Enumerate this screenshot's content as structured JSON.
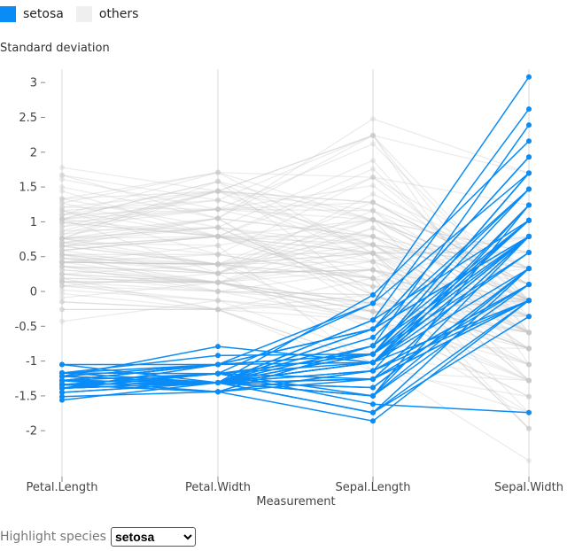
{
  "legend": [
    {
      "label": "setosa",
      "color": "#0a8cf7"
    },
    {
      "label": "others",
      "color": "#efefef"
    }
  ],
  "control": {
    "label": "Highlight species",
    "selected": "setosa"
  },
  "chart_data": {
    "type": "parallel-coordinates",
    "ylabel": "Standard deviation",
    "xlabel": "Measurement",
    "dimensions": [
      "Petal.Length",
      "Petal.Width",
      "Sepal.Length",
      "Sepal.Width"
    ],
    "yticks": [
      3,
      2.5,
      2,
      1.5,
      1,
      0.5,
      0,
      -0.5,
      -1,
      -1.5,
      -2
    ],
    "ytick_labels": [
      "3",
      "2.5",
      "2",
      "1.5",
      "1",
      "0.5",
      "0",
      "-0.5",
      "-1",
      "-1.5",
      "-2"
    ],
    "ylim": [
      -2.55,
      3.2
    ],
    "grid": "vertical axes",
    "highlight_color": "#0a8cf7",
    "other_color": "#c8c8c8",
    "series": [
      {
        "name": "setosa",
        "rows": [
          [
            -1.34,
            -1.31,
            -0.9,
            1.02
          ],
          [
            -1.34,
            -1.31,
            -1.14,
            -0.13
          ],
          [
            -1.39,
            -1.31,
            -1.38,
            0.33
          ],
          [
            -1.28,
            -1.31,
            -1.5,
            0.1
          ],
          [
            -1.34,
            -1.31,
            -1.02,
            1.24
          ],
          [
            -1.17,
            -1.05,
            -0.54,
            1.93
          ],
          [
            -1.34,
            -1.18,
            -1.5,
            0.79
          ],
          [
            -1.28,
            -1.31,
            -1.02,
            0.79
          ],
          [
            -1.34,
            -1.31,
            -1.74,
            -0.36
          ],
          [
            -1.28,
            -1.44,
            -1.14,
            0.1
          ],
          [
            -1.28,
            -1.31,
            -0.54,
            1.47
          ],
          [
            -1.22,
            -1.31,
            -1.26,
            0.79
          ],
          [
            -1.34,
            -1.44,
            -1.26,
            -0.13
          ],
          [
            -1.51,
            -1.44,
            -1.86,
            -0.13
          ],
          [
            -1.45,
            -1.31,
            -0.05,
            2.16
          ],
          [
            -1.28,
            -1.05,
            -0.17,
            3.08
          ],
          [
            -1.39,
            -1.05,
            -0.54,
            1.93
          ],
          [
            -1.34,
            -1.18,
            -0.9,
            1.02
          ],
          [
            -1.17,
            -1.18,
            -0.17,
            1.7
          ],
          [
            -1.28,
            -1.18,
            -0.9,
            1.7
          ],
          [
            -1.17,
            -1.31,
            -0.54,
            0.79
          ],
          [
            -1.28,
            -1.05,
            -0.9,
            1.47
          ],
          [
            -1.56,
            -1.31,
            -1.5,
            1.24
          ],
          [
            -1.17,
            -0.92,
            -0.9,
            0.56
          ],
          [
            -1.05,
            -1.31,
            -1.26,
            0.79
          ],
          [
            -1.22,
            -1.31,
            -1.02,
            -0.13
          ],
          [
            -1.22,
            -1.05,
            -1.02,
            0.79
          ],
          [
            -1.28,
            -1.31,
            -0.78,
            1.02
          ],
          [
            -1.34,
            -1.31,
            -0.78,
            0.79
          ],
          [
            -1.22,
            -1.31,
            -1.38,
            0.33
          ],
          [
            -1.22,
            -1.31,
            -1.26,
            0.1
          ],
          [
            -1.28,
            -1.05,
            -0.54,
            0.79
          ],
          [
            -1.28,
            -1.44,
            -0.78,
            2.39
          ],
          [
            -1.34,
            -1.31,
            -0.41,
            2.62
          ],
          [
            -1.28,
            -1.31,
            -1.14,
            0.1
          ],
          [
            -1.45,
            -1.31,
            -1.02,
            0.33
          ],
          [
            -1.39,
            -1.31,
            -0.41,
            1.02
          ],
          [
            -1.34,
            -1.44,
            -1.14,
            1.24
          ],
          [
            -1.39,
            -1.31,
            -1.74,
            -0.13
          ],
          [
            -1.28,
            -1.31,
            -0.9,
            0.79
          ],
          [
            -1.39,
            -1.18,
            -1.02,
            1.02
          ],
          [
            -1.39,
            -1.18,
            -1.62,
            -1.74
          ],
          [
            -1.39,
            -1.31,
            -1.74,
            0.33
          ],
          [
            -1.22,
            -0.79,
            -1.02,
            1.02
          ],
          [
            -1.05,
            -1.05,
            -0.9,
            1.7
          ],
          [
            -1.34,
            -1.18,
            -1.26,
            -0.13
          ],
          [
            -1.22,
            -1.31,
            -0.9,
            1.7
          ],
          [
            -1.34,
            -1.31,
            -1.5,
            0.33
          ],
          [
            -1.28,
            -1.31,
            -0.66,
            1.47
          ],
          [
            -1.34,
            -1.31,
            -1.02,
            0.56
          ]
        ]
      },
      {
        "name": "others",
        "rows": [
          [
            0.53,
            0.26,
            1.4,
            0.33
          ],
          [
            0.42,
            0.39,
            0.67,
            0.33
          ],
          [
            0.65,
            0.39,
            1.28,
            0.1
          ],
          [
            0.14,
            0.13,
            -0.41,
            -1.74
          ],
          [
            0.48,
            0.39,
            0.79,
            -0.59
          ],
          [
            0.42,
            0.13,
            -0.17,
            -0.59
          ],
          [
            0.53,
            0.53,
            0.55,
            0.56
          ],
          [
            -0.26,
            -0.26,
            -1.14,
            -1.51
          ],
          [
            0.48,
            0.13,
            0.91,
            -0.36
          ],
          [
            0.08,
            0.26,
            -0.78,
            -0.82
          ],
          [
            -0.15,
            -0.26,
            -1.02,
            -2.43
          ],
          [
            0.25,
            0.39,
            0.07,
            -0.13
          ],
          [
            0.14,
            -0.26,
            0.19,
            -1.97
          ],
          [
            0.53,
            0.26,
            0.31,
            -0.36
          ],
          [
            -0.09,
            0.13,
            -0.29,
            -0.36
          ],
          [
            0.36,
            0.26,
            1.03,
            0.1
          ],
          [
            0.42,
            0.39,
            -0.29,
            -0.13
          ],
          [
            0.19,
            -0.26,
            -0.05,
            -0.82
          ],
          [
            0.42,
            0.39,
            0.43,
            -1.97
          ],
          [
            0.08,
            -0.13,
            -0.29,
            -1.28
          ],
          [
            0.59,
            0.79,
            0.07,
            0.33
          ],
          [
            0.14,
            0.13,
            0.31,
            -0.59
          ],
          [
            0.65,
            0.39,
            0.55,
            -1.28
          ],
          [
            0.53,
            0.0,
            0.31,
            -0.59
          ],
          [
            0.31,
            0.13,
            0.67,
            -0.36
          ],
          [
            0.36,
            0.26,
            0.91,
            -0.13
          ],
          [
            0.59,
            0.26,
            1.16,
            -0.59
          ],
          [
            0.7,
            0.66,
            1.03,
            -0.13
          ],
          [
            0.42,
            0.39,
            0.19,
            -0.36
          ],
          [
            -0.15,
            -0.26,
            -0.17,
            -1.05
          ],
          [
            0.02,
            -0.13,
            -0.41,
            -1.51
          ],
          [
            -0.03,
            -0.26,
            -0.41,
            -1.51
          ],
          [
            0.08,
            0.0,
            -0.05,
            -0.82
          ],
          [
            0.76,
            0.53,
            0.19,
            -0.82
          ],
          [
            0.42,
            0.39,
            -0.54,
            -0.13
          ],
          [
            0.42,
            0.53,
            0.19,
            0.79
          ],
          [
            0.53,
            0.39,
            1.03,
            0.1
          ],
          [
            0.36,
            0.13,
            0.55,
            -1.74
          ],
          [
            0.19,
            0.13,
            -0.29,
            -0.13
          ],
          [
            0.14,
            0.13,
            -0.41,
            -1.28
          ],
          [
            0.36,
            0.0,
            -0.41,
            -1.05
          ],
          [
            0.48,
            0.26,
            0.31,
            -0.13
          ],
          [
            0.14,
            0.0,
            -0.05,
            -1.05
          ],
          [
            -0.26,
            -0.26,
            -1.02,
            -1.74
          ],
          [
            0.25,
            0.13,
            -0.29,
            -0.82
          ],
          [
            0.25,
            0.0,
            -0.17,
            -0.13
          ],
          [
            0.25,
            0.13,
            -0.17,
            -0.36
          ],
          [
            0.31,
            0.13,
            0.43,
            -0.36
          ],
          [
            -0.43,
            -0.13,
            -0.9,
            -1.28
          ],
          [
            0.19,
            0.13,
            -0.17,
            -0.59
          ],
          [
            1.27,
            1.71,
            0.55,
            0.56
          ],
          [
            0.76,
            0.92,
            -0.05,
            -0.82
          ],
          [
            1.21,
            1.18,
            1.52,
            -0.13
          ],
          [
            1.04,
            0.79,
            0.55,
            -0.36
          ],
          [
            1.16,
            1.31,
            0.79,
            -0.13
          ],
          [
            1.61,
            1.18,
            2.12,
            -0.13
          ],
          [
            0.42,
            0.66,
            -1.14,
            -1.28
          ],
          [
            1.44,
            0.79,
            1.76,
            -0.36
          ],
          [
            1.16,
            0.79,
            1.03,
            -1.28
          ],
          [
            1.33,
            1.71,
            1.64,
            1.24
          ],
          [
            0.76,
            1.05,
            0.79,
            0.33
          ],
          [
            0.87,
            0.92,
            0.67,
            -0.82
          ],
          [
            0.99,
            1.18,
            1.16,
            -0.13
          ],
          [
            0.7,
            1.05,
            -0.17,
            -1.28
          ],
          [
            0.76,
            1.58,
            -0.05,
            -0.59
          ],
          [
            0.87,
            1.44,
            0.67,
            0.33
          ],
          [
            0.99,
            0.79,
            0.79,
            -0.13
          ],
          [
            1.67,
            1.31,
            2.24,
            1.7
          ],
          [
            1.78,
            1.44,
            2.24,
            -1.05
          ],
          [
            0.7,
            0.39,
            0.19,
            -1.97
          ],
          [
            1.1,
            1.44,
            1.28,
            0.33
          ],
          [
            0.65,
            1.05,
            -0.29,
            -0.59
          ],
          [
            1.67,
            1.05,
            2.24,
            -0.59
          ],
          [
            0.65,
            0.79,
            0.55,
            -0.82
          ],
          [
            1.1,
            1.18,
            1.03,
            0.56
          ],
          [
            1.27,
            0.79,
            1.64,
            0.33
          ],
          [
            0.59,
            0.79,
            0.43,
            -0.59
          ],
          [
            0.65,
            0.79,
            0.31,
            -0.13
          ],
          [
            1.04,
            1.18,
            0.67,
            -0.59
          ],
          [
            1.16,
            0.53,
            1.64,
            -0.13
          ],
          [
            1.33,
            0.92,
            1.88,
            -0.59
          ],
          [
            1.5,
            1.05,
            2.48,
            1.7
          ],
          [
            1.04,
            1.31,
            0.67,
            -0.59
          ],
          [
            0.76,
            0.39,
            0.55,
            -0.59
          ],
          [
            1.04,
            0.26,
            0.31,
            -1.05
          ],
          [
            1.33,
            1.44,
            2.24,
            -0.13
          ],
          [
            1.04,
            1.58,
            0.55,
            0.79
          ],
          [
            0.99,
            0.79,
            0.67,
            0.1
          ],
          [
            0.59,
            0.79,
            0.19,
            -0.13
          ],
          [
            0.93,
            1.18,
            1.28,
            0.1
          ],
          [
            1.04,
            1.58,
            1.03,
            0.1
          ],
          [
            0.76,
            1.44,
            1.28,
            0.1
          ],
          [
            0.76,
            0.92,
            -0.05,
            -0.82
          ],
          [
            1.21,
            1.44,
            1.16,
            0.33
          ],
          [
            1.1,
            1.71,
            1.03,
            0.56
          ],
          [
            0.82,
            1.44,
            1.03,
            -0.13
          ],
          [
            0.7,
            0.92,
            0.55,
            -1.28
          ],
          [
            0.82,
            1.05,
            0.79,
            -0.13
          ],
          [
            0.93,
            1.44,
            0.43,
            0.79
          ],
          [
            0.76,
            0.79,
            0.07,
            -0.13
          ]
        ]
      }
    ]
  }
}
